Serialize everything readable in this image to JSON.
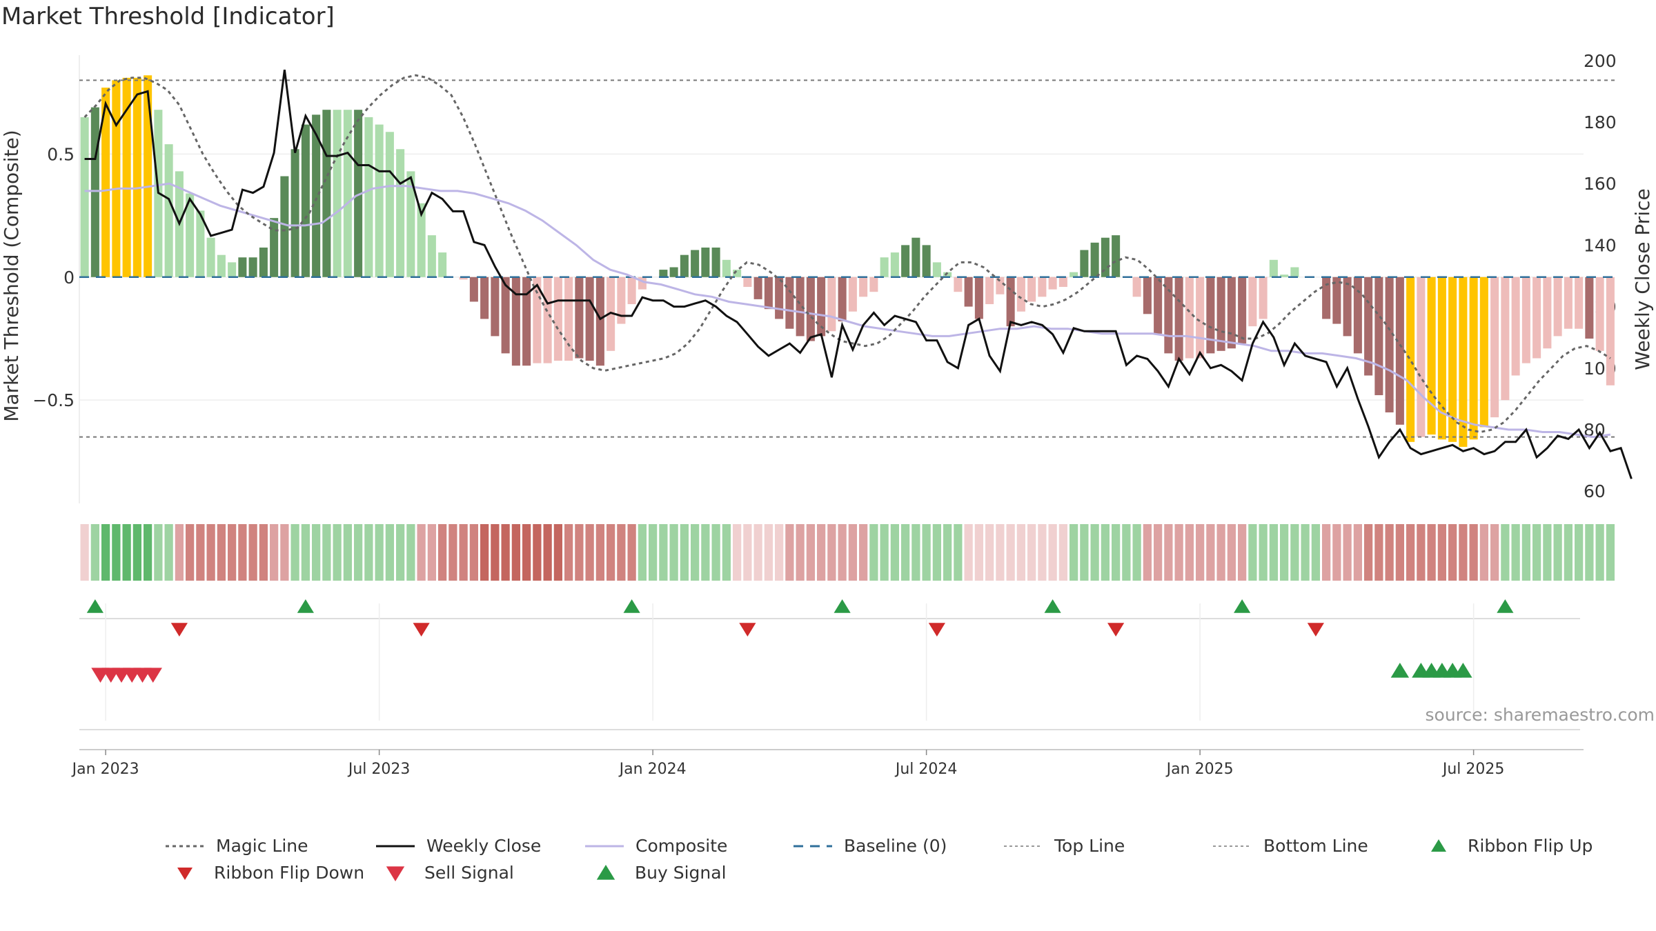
{
  "chart_data": {
    "type": "bar",
    "title": "Market Threshold [Indicator]",
    "source": "source: sharemaestro.com",
    "y_left_label": "Market Threshold (Composite)",
    "y_right_label": "Weekly Close Price",
    "y_left_ticks": [
      "0.5",
      "0",
      "−0.5"
    ],
    "y_left_tick_values": [
      0.5,
      0,
      -0.5
    ],
    "y_right_ticks": [
      "200",
      "180",
      "160",
      "140",
      "120",
      "100",
      "80",
      "60"
    ],
    "y_right_tick_values": [
      200,
      180,
      160,
      140,
      120,
      100,
      80,
      60
    ],
    "x_tick_labels": [
      "Jan 2023",
      "Jul 2023",
      "Jan 2024",
      "Jul 2024",
      "Jan 2025",
      "Jul 2025"
    ],
    "x_tick_weeks": [
      2,
      28,
      54,
      80,
      106,
      132
    ],
    "top_line": 0.8,
    "bottom_line": -0.65,
    "ylim_left": [
      -0.92,
      0.93
    ],
    "ylim_right": [
      56,
      204
    ],
    "composite_bars": [
      0.65,
      0.69,
      0.77,
      0.8,
      0.81,
      0.81,
      0.82,
      0.68,
      0.54,
      0.43,
      0.34,
      0.27,
      0.16,
      0.09,
      0.06,
      0.08,
      0.08,
      0.12,
      0.24,
      0.41,
      0.52,
      0.62,
      0.66,
      0.68,
      0.68,
      0.68,
      0.68,
      0.65,
      0.62,
      0.59,
      0.52,
      0.43,
      0.3,
      0.17,
      0.1,
      0,
      -0.01,
      -0.1,
      -0.17,
      -0.24,
      -0.31,
      -0.36,
      -0.36,
      -0.35,
      -0.35,
      -0.34,
      -0.34,
      -0.33,
      -0.34,
      -0.36,
      -0.3,
      -0.19,
      -0.11,
      -0.05,
      0,
      0.03,
      0.04,
      0.09,
      0.11,
      0.12,
      0.12,
      0.07,
      0.03,
      -0.04,
      -0.09,
      -0.13,
      -0.17,
      -0.21,
      -0.24,
      -0.26,
      -0.24,
      -0.22,
      -0.18,
      -0.14,
      -0.08,
      -0.06,
      0.08,
      0.1,
      0.13,
      0.16,
      0.13,
      0.06,
      0.02,
      -0.06,
      -0.12,
      -0.17,
      -0.11,
      -0.07,
      -0.2,
      -0.14,
      -0.1,
      -0.08,
      -0.05,
      -0.04,
      0.02,
      0.11,
      0.14,
      0.16,
      0.17,
      0,
      -0.08,
      -0.15,
      -0.23,
      -0.31,
      -0.34,
      -0.33,
      -0.33,
      -0.31,
      -0.3,
      -0.29,
      -0.27,
      -0.2,
      -0.17,
      0.07,
      0.01,
      0.04,
      0,
      0,
      -0.17,
      -0.19,
      -0.24,
      -0.31,
      -0.4,
      -0.48,
      -0.55,
      -0.6,
      -0.67,
      -0.65,
      -0.64,
      -0.66,
      -0.67,
      -0.69,
      -0.66,
      -0.61,
      -0.57,
      -0.5,
      -0.4,
      -0.35,
      -0.33,
      -0.29,
      -0.24,
      -0.21,
      -0.21,
      -0.25,
      -0.3,
      -0.44
    ],
    "bar_styles": [
      "lg",
      "dg",
      "y",
      "y",
      "y",
      "y",
      "y",
      "lg",
      "lg",
      "lg",
      "lg",
      "lg",
      "lg",
      "lg",
      "lg",
      "dg",
      "dg",
      "dg",
      "dg",
      "dg",
      "dg",
      "dg",
      "dg",
      "dg",
      "lg",
      "lg",
      "dg",
      "lg",
      "lg",
      "lg",
      "lg",
      "lg",
      "lg",
      "lg",
      "lg",
      "lr",
      "lr",
      "dr",
      "dr",
      "dr",
      "dr",
      "dr",
      "dr",
      "lr",
      "lr",
      "lr",
      "lr",
      "dr",
      "dr",
      "dr",
      "lr",
      "lr",
      "lr",
      "lr",
      "lr",
      "dg",
      "dg",
      "dg",
      "dg",
      "dg",
      "dg",
      "lg",
      "lg",
      "lr",
      "dr",
      "dr",
      "dr",
      "dr",
      "dr",
      "dr",
      "dr",
      "lr",
      "dr",
      "lr",
      "lr",
      "lr",
      "lg",
      "lg",
      "dg",
      "dg",
      "dg",
      "lg",
      "lg",
      "lr",
      "dr",
      "dr",
      "lr",
      "lr",
      "dr",
      "lr",
      "lr",
      "lr",
      "lr",
      "lr",
      "lg",
      "dg",
      "dg",
      "dg",
      "dg",
      "lr",
      "lr",
      "dr",
      "dr",
      "dr",
      "dr",
      "lr",
      "lr",
      "dr",
      "dr",
      "dr",
      "dr",
      "lr",
      "lr",
      "lg",
      "lg",
      "lg",
      "dg",
      "lr",
      "dr",
      "dr",
      "dr",
      "dr",
      "dr",
      "dr",
      "dr",
      "dr",
      "y",
      "lr",
      "y",
      "y",
      "y",
      "y",
      "y",
      "y",
      "lr",
      "lr",
      "lr",
      "lr",
      "lr",
      "lr",
      "lr",
      "lr",
      "lr",
      "dr",
      "lr",
      "lr",
      "dr",
      "dr"
    ],
    "weekly_close": [
      168,
      168,
      186,
      179,
      184,
      189,
      190,
      157,
      155,
      147,
      155,
      150,
      143,
      144,
      145,
      158,
      157,
      159,
      170,
      197,
      170,
      182,
      176,
      169,
      169,
      170,
      166,
      166,
      164,
      164,
      160,
      162,
      150,
      157,
      155,
      151,
      151,
      141,
      140,
      133,
      127,
      124,
      124,
      127,
      121,
      122,
      122,
      122,
      122,
      116,
      118,
      117,
      117,
      123,
      122,
      122,
      120,
      120,
      121,
      122,
      120,
      117,
      115,
      111,
      107,
      104,
      106,
      108,
      105,
      110,
      111,
      97,
      114,
      106,
      114,
      118,
      114,
      117,
      116,
      115,
      109,
      109,
      102,
      100,
      114,
      116,
      104,
      99,
      115,
      114,
      115,
      114,
      111,
      105,
      113,
      112,
      112,
      112,
      112,
      101,
      104,
      103,
      99,
      94,
      103,
      98,
      105,
      100,
      101,
      99,
      96,
      108,
      115,
      110,
      101,
      108,
      104,
      103,
      102,
      94,
      100,
      90,
      81,
      71,
      76,
      80,
      74,
      72,
      73,
      74,
      75,
      73,
      74,
      72,
      73,
      76,
      76,
      80,
      71,
      74,
      78,
      77,
      80,
      74,
      79,
      73,
      74,
      64
    ],
    "magic_line": [
      0.65,
      0.7,
      0.76,
      0.8,
      0.81,
      0.81,
      0.79,
      0.76,
      0.7,
      0.6,
      0.5,
      0.42,
      0.35,
      0.29,
      0.25,
      0.22,
      0.19,
      0.19,
      0.2,
      0.26,
      0.36,
      0.46,
      0.55,
      0.63,
      0.69,
      0.74,
      0.78,
      0.81,
      0.82,
      0.81,
      0.78,
      0.74,
      0.65,
      0.54,
      0.42,
      0.3,
      0.18,
      0.07,
      -0.04,
      -0.13,
      -0.21,
      -0.28,
      -0.34,
      -0.37,
      -0.38,
      -0.37,
      -0.36,
      -0.35,
      -0.34,
      -0.33,
      -0.31,
      -0.27,
      -0.21,
      -0.13,
      -0.05,
      0.02,
      0.06,
      0.05,
      0.02,
      -0.02,
      -0.08,
      -0.14,
      -0.19,
      -0.23,
      -0.26,
      -0.27,
      -0.28,
      -0.27,
      -0.24,
      -0.19,
      -0.14,
      -0.08,
      -0.03,
      0.02,
      0.06,
      0.06,
      0.04,
      0.0,
      -0.04,
      -0.08,
      -0.11,
      -0.12,
      -0.11,
      -0.09,
      -0.06,
      -0.02,
      0.02,
      0.06,
      0.08,
      0.07,
      0.03,
      -0.02,
      -0.07,
      -0.12,
      -0.17,
      -0.2,
      -0.22,
      -0.23,
      -0.25,
      -0.25,
      -0.23,
      -0.19,
      -0.14,
      -0.1,
      -0.06,
      -0.03,
      -0.02,
      -0.03,
      -0.07,
      -0.13,
      -0.19,
      -0.26,
      -0.33,
      -0.41,
      -0.48,
      -0.54,
      -0.59,
      -0.62,
      -0.63,
      -0.62,
      -0.59,
      -0.54,
      -0.48,
      -0.42,
      -0.37,
      -0.32,
      -0.29,
      -0.28,
      -0.3,
      -0.33
    ],
    "composite_line": [
      0.35,
      0.35,
      0.36,
      0.36,
      0.37,
      0.38,
      0.35,
      0.32,
      0.29,
      0.27,
      0.25,
      0.23,
      0.21,
      0.21,
      0.22,
      0.27,
      0.33,
      0.36,
      0.37,
      0.37,
      0.36,
      0.35,
      0.35,
      0.34,
      0.32,
      0.3,
      0.27,
      0.23,
      0.18,
      0.13,
      0.07,
      0.03,
      0.01,
      -0.02,
      -0.03,
      -0.05,
      -0.07,
      -0.08,
      -0.1,
      -0.11,
      -0.12,
      -0.13,
      -0.14,
      -0.15,
      -0.16,
      -0.18,
      -0.2,
      -0.21,
      -0.22,
      -0.23,
      -0.24,
      -0.24,
      -0.23,
      -0.22,
      -0.21,
      -0.21,
      -0.2,
      -0.21,
      -0.21,
      -0.22,
      -0.23,
      -0.23,
      -0.23,
      -0.23,
      -0.24,
      -0.24,
      -0.25,
      -0.26,
      -0.27,
      -0.28,
      -0.3,
      -0.3,
      -0.31,
      -0.31,
      -0.32,
      -0.33,
      -0.35,
      -0.38,
      -0.42,
      -0.49,
      -0.55,
      -0.58,
      -0.6,
      -0.61,
      -0.62,
      -0.62,
      -0.63,
      -0.63,
      -0.64,
      -0.65,
      -0.64
    ],
    "ribbon": [
      "p",
      "g1",
      "g2",
      "g2",
      "g2",
      "g2",
      "g2",
      "g1",
      "g1",
      "r1",
      "r2",
      "r2",
      "r2",
      "r2",
      "r2",
      "r2",
      "r2",
      "r2",
      "r1",
      "r1",
      "g1",
      "g1",
      "g1",
      "g1",
      "g1",
      "g1",
      "g1",
      "g1",
      "g1",
      "g1",
      "g1",
      "g1",
      "r1",
      "r1",
      "r2",
      "r2",
      "r2",
      "r2",
      "r3",
      "r3",
      "r3",
      "r3",
      "r3",
      "r3",
      "r3",
      "r3",
      "r2",
      "r2",
      "r2",
      "r2",
      "r2",
      "r2",
      "r2",
      "g1",
      "g1",
      "g1",
      "g1",
      "g1",
      "g1",
      "g1",
      "g1",
      "g1",
      "p",
      "p",
      "p",
      "p",
      "p",
      "r1",
      "r1",
      "r1",
      "r1",
      "r1",
      "r1",
      "r1",
      "r1",
      "g1",
      "g1",
      "g1",
      "g1",
      "g1",
      "g1",
      "g1",
      "g1",
      "g1",
      "p",
      "p",
      "p",
      "p",
      "p",
      "p",
      "p",
      "p",
      "p",
      "p",
      "g1",
      "g1",
      "g1",
      "g1",
      "g1",
      "g1",
      "g1",
      "r1",
      "r1",
      "r1",
      "r1",
      "r1",
      "r1",
      "r1",
      "r1",
      "r1",
      "r1",
      "g1",
      "g1",
      "g1",
      "g1",
      "g1",
      "g1",
      "g1",
      "r1",
      "r1",
      "r1",
      "r1",
      "r2",
      "r2",
      "r2",
      "r2",
      "r2",
      "r2",
      "r2",
      "r2",
      "r2",
      "r2",
      "r2",
      "r1",
      "r1",
      "g1",
      "g1",
      "g1",
      "g1",
      "g1",
      "g1",
      "g1",
      "g1",
      "g1",
      "g1",
      "g1"
    ],
    "ribbon_flip_up_weeks": [
      1,
      21,
      52,
      72,
      92,
      110,
      135
    ],
    "ribbon_flip_down_weeks": [
      9,
      32,
      63,
      81,
      98,
      117
    ],
    "sell_signal_weeks": [
      1.5,
      2.5,
      3.5,
      4.5,
      5.5,
      6.5
    ],
    "buy_signal_weeks": [
      125,
      127,
      128,
      129,
      130,
      131
    ],
    "legend": [
      "Magic Line",
      "Weekly Close",
      "Composite",
      "Baseline (0)",
      "Top Line",
      "Bottom Line",
      "Ribbon Flip Up",
      "Ribbon Flip Down",
      "Sell Signal",
      "Buy Signal"
    ],
    "colors": {
      "light_green": "#acdcac",
      "dark_green": "#5a8a58",
      "yellow": "#ffc400",
      "light_red": "#eebcba",
      "dark_red": "#a76b6b",
      "weekly_close": "#111111",
      "composite": "#bdb5e6",
      "baseline": "#2f6f9a",
      "ref_line": "#777777",
      "flip_up": "#2b9a46",
      "flip_down": "#d02a2a",
      "sell": "#dc3545",
      "buy": "#2b9a46"
    }
  }
}
